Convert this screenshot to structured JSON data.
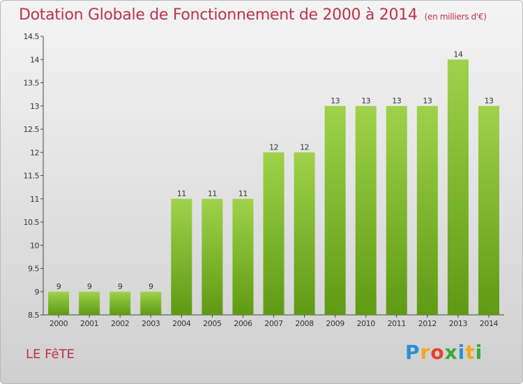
{
  "title": "Dotation Globale de Fonctionnement de 2000 à 2014",
  "subtitle": "(en milliers d'€)",
  "commune": "LE FêTE",
  "logo": {
    "text": "Proxiti",
    "letters": [
      "P",
      "r",
      "o",
      "x",
      "i",
      "t",
      "i"
    ],
    "colors": [
      "#2a8fd6",
      "#f2a81d",
      "#e8412b",
      "#3aaa35",
      "#2a8fd6",
      "#f2a81d",
      "#3aaa35"
    ]
  },
  "colors": {
    "bar_top": "#9fd24a",
    "bar_bottom": "#5f9a14",
    "text": "#c0314a"
  },
  "chart_data": {
    "type": "bar",
    "title": "Dotation Globale de Fonctionnement de 2000 à 2014",
    "subtitle": "(en milliers d'€)",
    "categories": [
      "2000",
      "2001",
      "2002",
      "2003",
      "2004",
      "2005",
      "2006",
      "2007",
      "2008",
      "2009",
      "2010",
      "2011",
      "2012",
      "2013",
      "2014"
    ],
    "values": [
      9,
      9,
      9,
      9,
      11,
      11,
      11,
      12,
      12,
      13,
      13,
      13,
      13,
      14,
      13
    ],
    "data_labels": [
      "9",
      "9",
      "9",
      "9",
      "11",
      "11",
      "11",
      "12",
      "12",
      "13",
      "13",
      "13",
      "13",
      "14",
      "13"
    ],
    "ylim": [
      8.5,
      14.5
    ],
    "yticks": [
      8.5,
      9,
      9.5,
      10,
      10.5,
      11,
      11.5,
      12,
      12.5,
      13,
      13.5,
      14,
      14.5
    ],
    "ytick_labels": [
      "8.5",
      "9",
      "9.5",
      "10",
      "10.5",
      "11",
      "11.5",
      "12",
      "12.5",
      "13",
      "13.5",
      "14",
      "14.5"
    ],
    "grid": false,
    "xlabel": "",
    "ylabel": ""
  }
}
